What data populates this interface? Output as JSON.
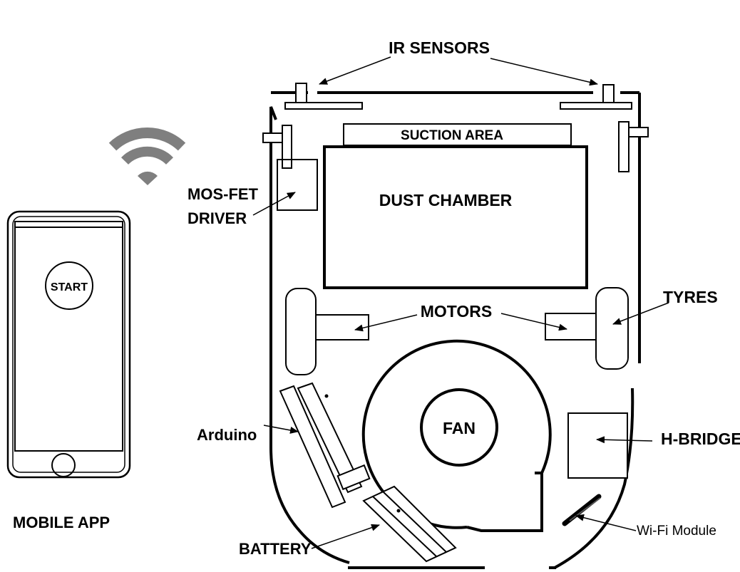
{
  "phone": {
    "button_label": "START",
    "caption": "MOBILE APP"
  },
  "robot": {
    "labels": {
      "ir_sensors": "IR SENSORS",
      "suction_area": "SUCTION AREA",
      "dust_chamber": "DUST CHAMBER",
      "mosfet_line1": "MOS-FET",
      "mosfet_line2": "DRIVER",
      "motors": "MOTORS",
      "tyres": "TYRES",
      "fan": "FAN",
      "arduino": "Arduino",
      "h_bridge": "H-BRIDGE",
      "battery": "BATTERY",
      "wifi_module": "Wi-Fi Module"
    }
  },
  "colors": {
    "stroke": "#000000",
    "wifi_icon": "#7f7f7f",
    "background": "#ffffff"
  }
}
